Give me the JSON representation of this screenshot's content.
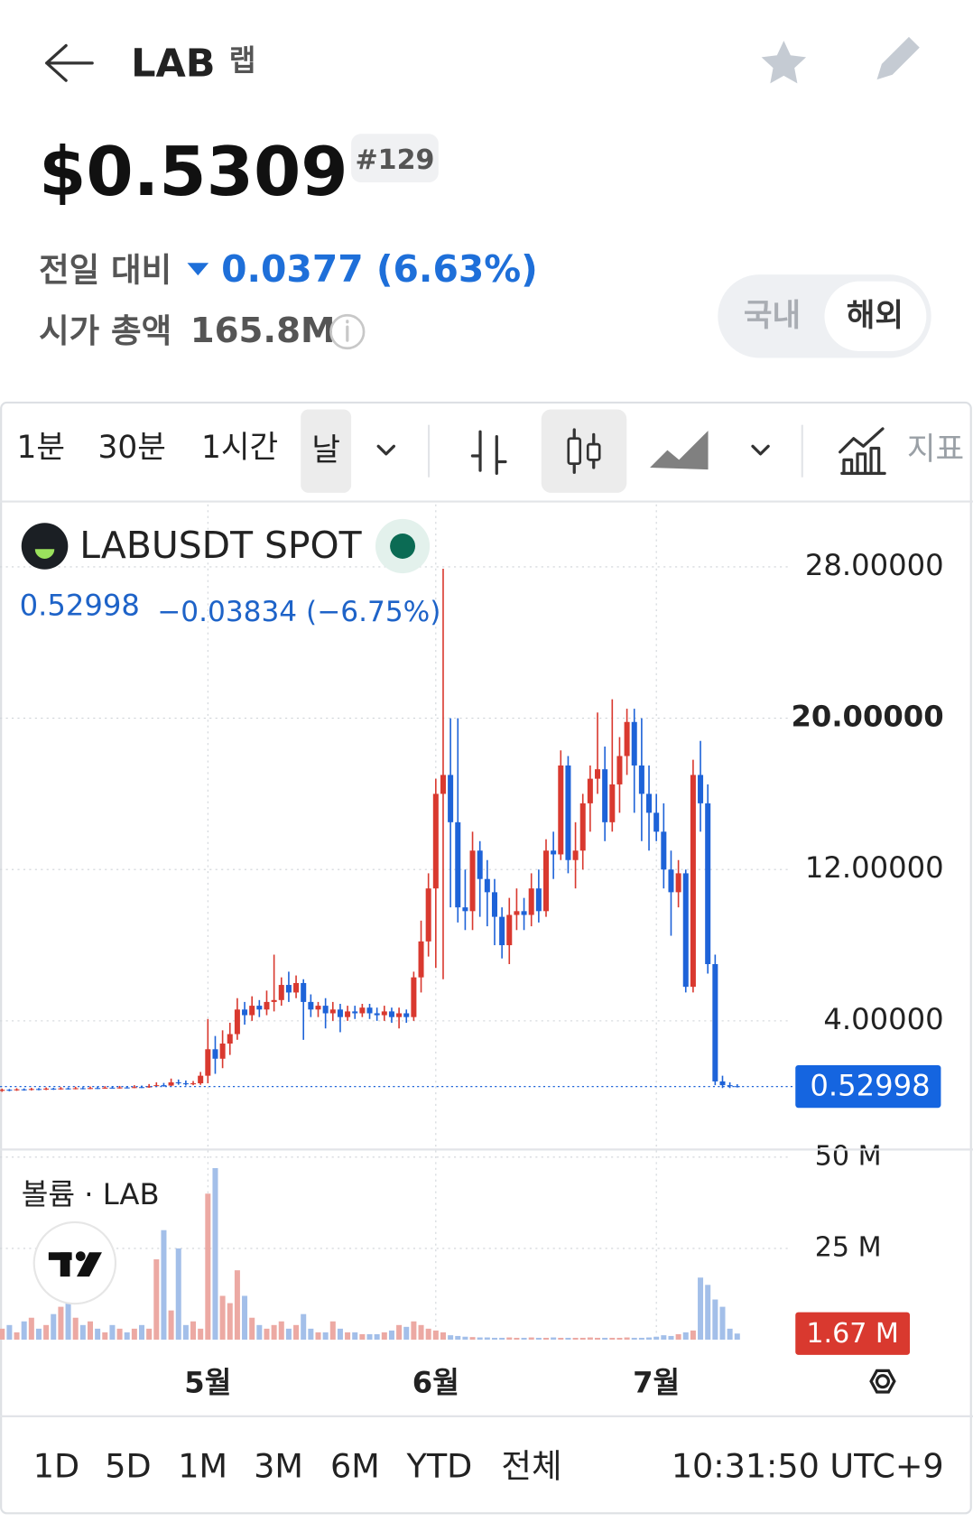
{
  "header": {
    "symbol": "LAB",
    "name": "랩",
    "price": "$0.5309",
    "rank": "#129",
    "change_label": "전일 대비",
    "change": "0.0377 (6.63%)",
    "market_cap_label": "시가 총액",
    "market_cap": "165.8M",
    "toggle": [
      "국내",
      "해외"
    ]
  },
  "toolbar": {
    "intervals": [
      "1분",
      "30분",
      "1시간",
      "날"
    ],
    "indicators": "지표"
  },
  "chart_data": {
    "type": "candlestick",
    "symbol": "LABUSDT SPOT",
    "last_price": 0.52998,
    "change": "−0.03834 (−6.75%)",
    "categories": [
      null,
      null,
      null,
      null,
      null,
      null,
      null,
      null,
      null,
      null,
      null,
      null,
      null,
      null,
      null,
      null,
      null,
      null,
      null,
      null,
      null,
      null,
      null,
      null,
      null,
      null,
      null,
      null,
      "5월",
      null,
      null,
      null,
      null,
      null,
      null,
      null,
      null,
      null,
      null,
      null,
      null,
      null,
      null,
      null,
      null,
      null,
      null,
      null,
      null,
      null,
      null,
      null,
      null,
      null,
      null,
      null,
      null,
      null,
      null,
      "6월",
      null,
      null,
      null,
      null,
      null,
      null,
      null,
      null,
      null,
      null,
      null,
      null,
      null,
      null,
      null,
      null,
      null,
      null,
      null,
      null,
      null,
      null,
      null,
      null,
      null,
      null,
      null,
      null,
      null,
      "7월",
      null,
      null,
      null,
      null,
      null,
      null,
      null,
      null,
      null,
      null,
      null
    ],
    "open": [
      0.3,
      0.36,
      0.33,
      0.38,
      0.35,
      0.4,
      0.37,
      0.42,
      0.39,
      0.43,
      0.4,
      0.44,
      0.41,
      0.45,
      0.43,
      0.47,
      0.44,
      0.48,
      0.46,
      0.5,
      0.48,
      0.55,
      0.6,
      0.58,
      0.75,
      0.7,
      0.65,
      0.7,
      1.1,
      2.5,
      2.0,
      2.8,
      3.3,
      4.6,
      4.3,
      4.8,
      4.6,
      5.0,
      5.1,
      5.9,
      5.5,
      6.0,
      5.0,
      4.6,
      4.8,
      4.4,
      4.6,
      4.2,
      4.5,
      4.4,
      4.7,
      4.4,
      4.3,
      4.5,
      4.2,
      4.4,
      4.2,
      6.3,
      8.2,
      11.0,
      16.0,
      17.0,
      14.5,
      10.0,
      9.8,
      13.0,
      11.5,
      10.8,
      9.5,
      8.0,
      9.6,
      9.8,
      9.6,
      11.0,
      9.8,
      13.0,
      12.8,
      17.5,
      12.5,
      13.0,
      15.5,
      16.8,
      17.3,
      14.5,
      16.5,
      18.0,
      19.8,
      17.5,
      16.0,
      15.0,
      14.0,
      12.0,
      10.8,
      11.8,
      5.8,
      17.0,
      15.5,
      7.0,
      0.8,
      0.6,
      0.55
    ],
    "high": [
      0.42,
      0.4,
      0.44,
      0.43,
      0.46,
      0.45,
      0.48,
      0.46,
      0.5,
      0.48,
      0.52,
      0.5,
      0.53,
      0.52,
      0.55,
      0.54,
      0.56,
      0.55,
      0.6,
      0.58,
      0.66,
      0.75,
      0.72,
      0.95,
      0.9,
      0.85,
      0.82,
      1.3,
      4.1,
      3.2,
      3.5,
      3.9,
      5.2,
      5.0,
      5.3,
      5.1,
      5.6,
      7.5,
      6.3,
      6.6,
      6.4,
      6.2,
      5.4,
      5.0,
      5.2,
      5.0,
      4.9,
      4.8,
      4.8,
      4.9,
      4.9,
      4.7,
      4.8,
      4.7,
      4.7,
      4.6,
      6.6,
      9.3,
      11.8,
      16.8,
      27.9,
      20.0,
      20.0,
      12.0,
      14.0,
      13.5,
      12.5,
      11.5,
      10.0,
      10.5,
      11.0,
      10.5,
      11.8,
      12.0,
      13.6,
      14.0,
      18.3,
      18.0,
      14.5,
      16.0,
      17.5,
      20.3,
      18.5,
      21.0,
      19.0,
      20.5,
      20.5,
      20.0,
      17.5,
      16.0,
      15.5,
      13.0,
      12.5,
      12.0,
      17.8,
      18.8,
      16.5,
      7.5,
      1.1,
      0.75,
      0.65
    ],
    "low": [
      0.25,
      0.28,
      0.3,
      0.31,
      0.32,
      0.33,
      0.34,
      0.35,
      0.36,
      0.37,
      0.38,
      0.38,
      0.39,
      0.4,
      0.41,
      0.42,
      0.42,
      0.43,
      0.44,
      0.45,
      0.46,
      0.5,
      0.52,
      0.55,
      0.62,
      0.58,
      0.6,
      0.62,
      0.7,
      1.2,
      1.5,
      2.2,
      3.0,
      3.8,
      4.0,
      4.2,
      4.3,
      4.5,
      4.8,
      5.0,
      5.2,
      3.0,
      4.2,
      4.2,
      3.6,
      4.0,
      3.4,
      4.0,
      4.1,
      4.2,
      4.1,
      4.0,
      4.0,
      3.9,
      3.6,
      3.9,
      4.0,
      5.5,
      7.4,
      6.8,
      6.2,
      10.0,
      9.2,
      8.8,
      8.8,
      9.5,
      9.0,
      8.0,
      7.3,
      7.0,
      8.8,
      8.8,
      9.0,
      9.2,
      9.5,
      11.5,
      12.5,
      11.8,
      11.0,
      12.0,
      14.0,
      16.0,
      13.5,
      14.0,
      15.0,
      17.0,
      15.0,
      13.5,
      13.0,
      13.5,
      11.0,
      8.5,
      10.0,
      5.5,
      5.5,
      14.0,
      6.5,
      0.6,
      0.45,
      0.45,
      0.48
    ],
    "close": [
      0.36,
      0.33,
      0.38,
      0.35,
      0.4,
      0.37,
      0.42,
      0.39,
      0.43,
      0.4,
      0.44,
      0.41,
      0.45,
      0.43,
      0.47,
      0.44,
      0.48,
      0.46,
      0.5,
      0.48,
      0.55,
      0.6,
      0.58,
      0.75,
      0.7,
      0.65,
      0.7,
      1.1,
      2.5,
      2.0,
      2.8,
      3.3,
      4.6,
      4.3,
      4.8,
      4.6,
      5.0,
      5.1,
      5.9,
      5.5,
      6.0,
      5.0,
      4.6,
      4.8,
      4.4,
      4.6,
      4.2,
      4.5,
      4.4,
      4.7,
      4.4,
      4.3,
      4.5,
      4.2,
      4.4,
      4.2,
      6.3,
      8.2,
      11.0,
      16.0,
      17.0,
      14.5,
      10.0,
      9.8,
      13.0,
      11.5,
      10.8,
      9.5,
      8.0,
      9.6,
      9.8,
      9.6,
      11.0,
      9.8,
      13.0,
      12.8,
      17.5,
      12.5,
      13.0,
      15.5,
      16.8,
      17.3,
      14.5,
      16.5,
      18.0,
      19.8,
      17.5,
      16.0,
      15.0,
      14.0,
      12.0,
      10.8,
      11.8,
      5.8,
      17.0,
      15.5,
      7.0,
      0.8,
      0.6,
      0.55,
      0.53
    ],
    "up_color": "#d9392f",
    "down_color": "#1e63d8",
    "last_price_color": "#1565e0",
    "ylim": [
      -2.8,
      31.3
    ],
    "yticks": [
      {
        "value": 28,
        "label": "28.00000"
      },
      {
        "value": 20,
        "label": "20.00000"
      },
      {
        "value": 12,
        "label": "12.00000"
      },
      {
        "value": 4,
        "label": "4.00000"
      }
    ],
    "grid": true,
    "volume": {
      "title": "볼륨 · LAB",
      "up_color": "#eca9a3",
      "down_color": "#a3bfe9",
      "current_color": "#d9392f",
      "values": [
        3,
        4,
        2,
        5,
        6,
        3,
        4,
        7,
        9,
        10,
        6,
        4,
        5,
        3,
        2,
        4,
        3,
        2,
        3,
        4,
        3,
        22,
        30,
        8,
        25,
        4,
        5,
        3,
        40,
        47,
        12,
        10,
        19,
        12,
        6,
        4,
        3,
        4,
        5,
        3,
        4,
        7,
        3,
        2,
        2,
        5,
        3,
        2,
        2,
        1.5,
        1.5,
        1.5,
        2,
        2.5,
        4,
        3.5,
        5,
        4,
        3,
        2.5,
        2,
        1.2,
        1,
        0.8,
        0.7,
        0.6,
        0.6,
        0.5,
        0.5,
        0.6,
        0.5,
        0.5,
        0.6,
        0.5,
        0.5,
        0.6,
        0.5,
        0.5,
        0.5,
        0.5,
        0.6,
        0.5,
        0.5,
        0.5,
        0.5,
        0.6,
        0.5,
        0.5,
        0.6,
        0.8,
        1.2,
        1,
        1.5,
        2,
        2.5,
        17,
        15,
        11,
        9,
        3,
        1.67
      ],
      "ylim": [
        0,
        51.3
      ],
      "yticks": [
        {
          "value": 50,
          "label": "50 M"
        },
        {
          "value": 25,
          "label": "25 M"
        }
      ],
      "current": {
        "value": 1.67,
        "label": "1.67 M"
      }
    }
  },
  "footer": {
    "ranges": [
      "1D",
      "5D",
      "1M",
      "3M",
      "6M",
      "YTD",
      "전체"
    ],
    "time": "10:31:50 UTC+9"
  }
}
